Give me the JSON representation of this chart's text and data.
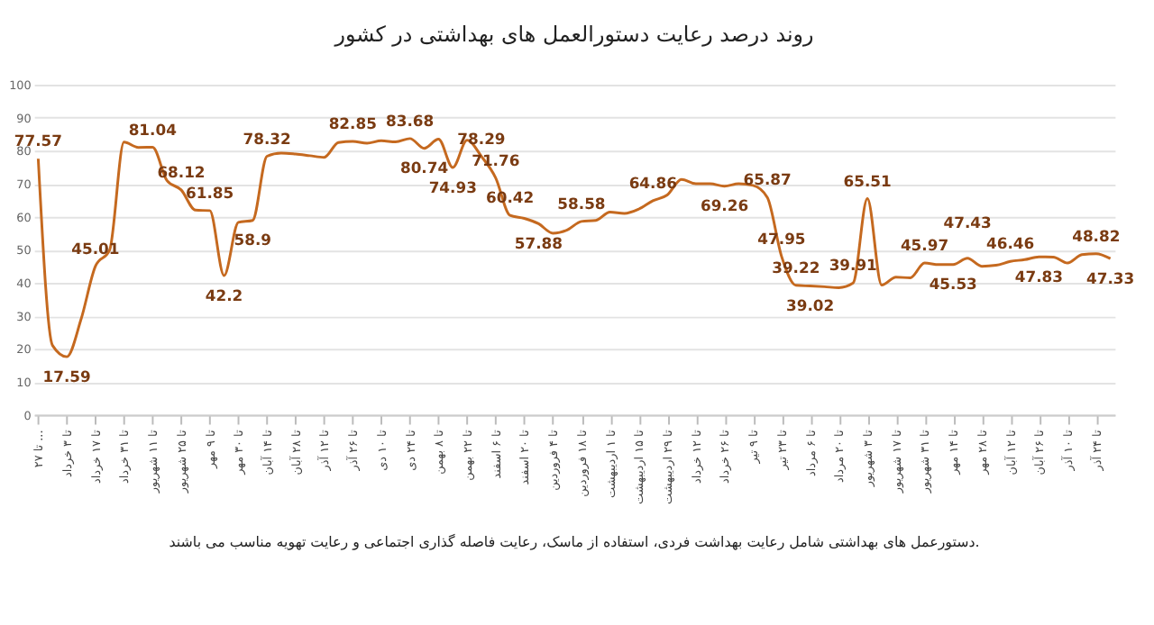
{
  "chart_data": {
    "type": "line",
    "title": "روند درصد رعایت دستورالعمل های بهداشتی در کشور",
    "categories": [
      "تا ۲۷ ...",
      null,
      "تا ۳ خرداد",
      null,
      "تا ۱۷ خرداد",
      null,
      "تا ۳۱ خرداد",
      null,
      "تا ۱۱ شهریور",
      null,
      "تا ۲۵ شهریور",
      null,
      "تا ۹ مهر",
      null,
      "تا ۳۰ مهر",
      null,
      "تا ۱۴ آبان",
      null,
      "تا ۲۸ آبان",
      null,
      "تا ۱۲ آذر",
      null,
      "تا ۲۶ آذر",
      null,
      "تا ۱۰ دی",
      null,
      "تا ۲۴ دی",
      null,
      "تا ۸ بهمن",
      null,
      "تا ۲۲ بهمن",
      null,
      "تا ۶ اسفند",
      null,
      "تا ۲۰ اسفند",
      null,
      "تا ۴ فروردین",
      null,
      "تا ۱۸ فروردین",
      null,
      "تا ۱ اردیبهشت",
      null,
      "تا ۱۵ اردیبهشت",
      null,
      "تا ۲۹ اردیبهشت",
      null,
      "تا ۱۲ خرداد",
      null,
      "تا ۲۶ خرداد",
      null,
      "تا ۹ تیر",
      null,
      "تا ۲۳ تیر",
      null,
      "تا ۶ مرداد",
      null,
      "تا ۲۰ مرداد",
      null,
      "تا ۳ شهریور",
      null,
      "تا ۱۷ شهریور",
      null,
      "تا ۳۱ شهریور",
      null,
      "تا ۱۴ مهر",
      null,
      "تا ۲۸ مهر",
      null,
      "تا ۱۲ آبان",
      null,
      "تا ۲۶ آبان",
      null,
      "تا ۱۰ آذر",
      null,
      "تا ۲۴ آذر",
      null
    ],
    "values": [
      77.57,
      21,
      17.59,
      29,
      45.01,
      50,
      82.6,
      81,
      81.04,
      71,
      68.12,
      62,
      61.85,
      42.2,
      58.3,
      58.9,
      78.32,
      79.3,
      79,
      78.5,
      78,
      82.5,
      82.85,
      82.3,
      83,
      82.7,
      83.68,
      80.74,
      83.5,
      74.93,
      83.2,
      78.29,
      71.76,
      60.42,
      59.5,
      57.88,
      55,
      56,
      58.58,
      58.9,
      61.4,
      61,
      62.3,
      64.86,
      66.6,
      71.3,
      70,
      70,
      69.26,
      70,
      69.5,
      65.87,
      47.95,
      39.22,
      39.02,
      38.8,
      38.5,
      39.91,
      65.51,
      39.3,
      41.7,
      41.5,
      45.97,
      45.5,
      45.53,
      47.43,
      45,
      45.3,
      46.46,
      47,
      47.83,
      47.8,
      46,
      48.5,
      48.82,
      47.33
    ],
    "value_labels": [
      "77.57",
      null,
      "17.59",
      null,
      "45.01",
      null,
      null,
      null,
      "81.04",
      null,
      "68.12",
      null,
      "61.85",
      "42.2",
      null,
      "58.9",
      "78.32",
      null,
      null,
      null,
      null,
      null,
      "82.85",
      null,
      null,
      null,
      "83.68",
      "80.74",
      null,
      "74.93",
      null,
      "78.29",
      "71.76",
      "60.42",
      null,
      "57.88",
      null,
      null,
      "58.58",
      null,
      null,
      null,
      null,
      "64.86",
      null,
      null,
      null,
      null,
      "69.26",
      null,
      null,
      "65.87",
      "47.95",
      "39.22",
      "39.02",
      null,
      null,
      "39.91",
      "65.51",
      null,
      null,
      null,
      "45.97",
      null,
      "45.53",
      "47.43",
      null,
      null,
      "46.46",
      null,
      "47.83",
      null,
      null,
      null,
      "48.82",
      "47.33"
    ],
    "color": "#c5691f",
    "ylim": [
      0,
      100
    ],
    "yticks": [
      0,
      10,
      20,
      30,
      40,
      50,
      60,
      70,
      80,
      90,
      100
    ],
    "grid": "y",
    "annotations": [
      "دستورعمل های بهداشتی شامل رعایت بهداشت فردی، استفاده از ماسک، رعایت فاصله گذاری اجتماعی و رعایت تهویه مناسب می باشند."
    ]
  }
}
